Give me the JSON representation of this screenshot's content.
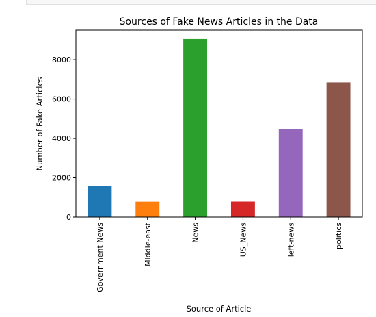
{
  "chart_data": {
    "type": "bar",
    "title": "Sources of Fake News Articles in the Data",
    "xlabel": "Source of Article",
    "ylabel": "Number of Fake Articles",
    "categories": [
      "Government News",
      "Middle-east",
      "News",
      "US_News",
      "left-news",
      "politics"
    ],
    "values": [
      1570,
      778,
      9050,
      783,
      4459,
      6841
    ],
    "colors": [
      "#1f77b4",
      "#ff7f0e",
      "#2ca02c",
      "#d62728",
      "#9467bd",
      "#8c564b"
    ],
    "ylim": [
      0,
      9500
    ],
    "yticks": [
      0,
      2000,
      4000,
      6000,
      8000
    ],
    "grid": false,
    "legend": "none"
  }
}
